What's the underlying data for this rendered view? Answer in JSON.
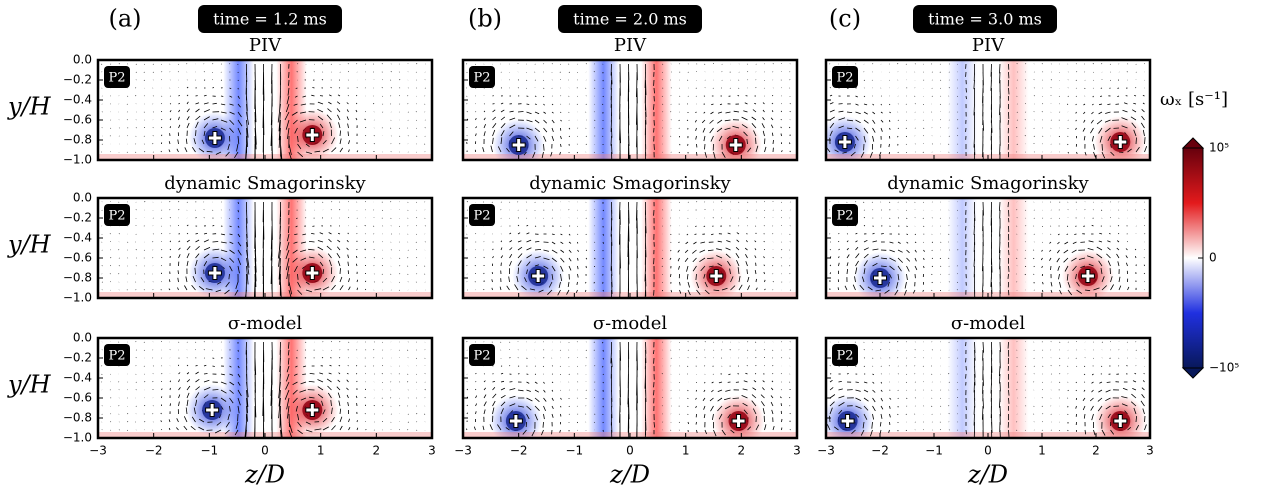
{
  "chart_data": {
    "type": "vector-field-grid",
    "columns": [
      {
        "label": "(a)",
        "time": "time = 1.2 ms"
      },
      {
        "label": "(b)",
        "time": "time = 2.0 ms"
      },
      {
        "label": "(c)",
        "time": "time = 3.0 ms"
      }
    ],
    "rows": [
      "PIV",
      "dynamic Smagorinsky",
      "σ-model"
    ],
    "badge": "P2",
    "xlabel": "z/D",
    "ylabel": "y/H",
    "xlim": [
      -3,
      3
    ],
    "xticks": [
      {
        "value": -3,
        "label": "−3"
      },
      {
        "value": -2,
        "label": "−2"
      },
      {
        "value": -1,
        "label": "−1"
      },
      0,
      1,
      2,
      3
    ],
    "ylim": [
      -1,
      0
    ],
    "yticks": [
      {
        "value": 0,
        "label": "0.0"
      },
      {
        "value": -0.2,
        "label": "−0.2"
      },
      {
        "value": -0.4,
        "label": "−0.4"
      },
      {
        "value": -0.6,
        "label": "−0.6"
      },
      {
        "value": -0.8,
        "label": "−0.8"
      },
      {
        "value": -1,
        "label": "−1.0"
      }
    ],
    "vortex_centers": [
      [
        {
          "x": [
            -0.9,
            0.85
          ],
          "y": [
            -0.78,
            -0.75
          ]
        },
        {
          "x": [
            -2.0,
            1.9
          ],
          "y": [
            -0.85,
            -0.85
          ]
        },
        {
          "x": [
            -2.65,
            2.45
          ],
          "y": [
            -0.82,
            -0.82
          ]
        }
      ],
      [
        {
          "x": [
            -0.9,
            0.85
          ],
          "y": [
            -0.75,
            -0.75
          ]
        },
        {
          "x": [
            -1.65,
            1.55
          ],
          "y": [
            -0.78,
            -0.78
          ]
        },
        {
          "x": [
            -2.0,
            1.85
          ],
          "y": [
            -0.8,
            -0.78
          ]
        }
      ],
      [
        {
          "x": [
            -0.95,
            0.85
          ],
          "y": [
            -0.72,
            -0.72
          ]
        },
        {
          "x": [
            -2.05,
            1.95
          ],
          "y": [
            -0.83,
            -0.83
          ]
        },
        {
          "x": [
            -2.6,
            2.45
          ],
          "y": [
            -0.83,
            -0.83
          ]
        }
      ]
    ],
    "colorbar": {
      "label": "ωₓ  [s⁻¹]",
      "clim": [
        -100000,
        100000
      ],
      "ticks": [
        {
          "value": 100000,
          "label": "10⁵"
        },
        0,
        {
          "value": -100000,
          "label": "−10⁵"
        }
      ]
    }
  }
}
